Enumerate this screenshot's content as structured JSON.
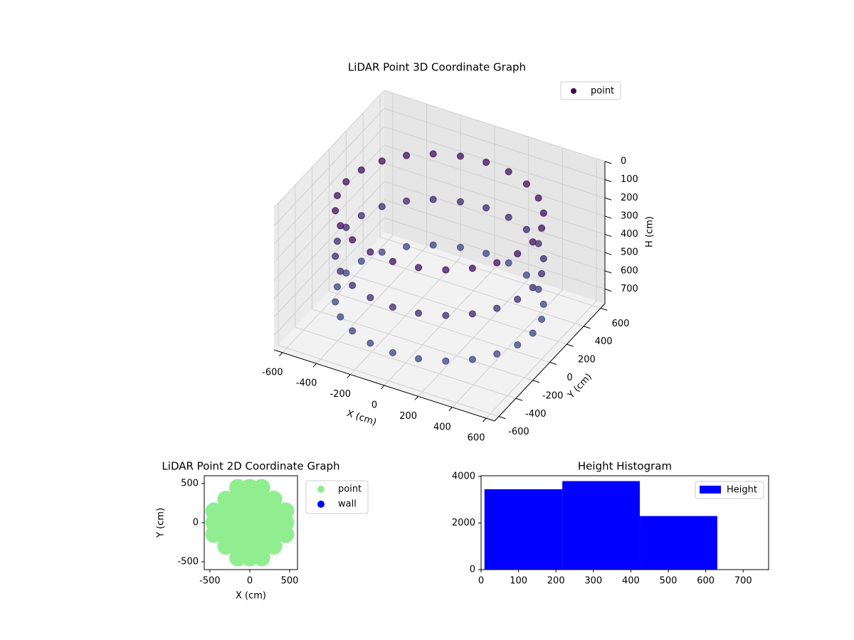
{
  "chart_data": [
    {
      "type": "scatter3d",
      "title": "LiDAR Point 3D Coordinate Graph",
      "xlabel": "X (cm)",
      "ylabel": "Y (cm)",
      "zlabel": "H (cm)",
      "xlim": [
        -650,
        650
      ],
      "ylim": [
        -650,
        650
      ],
      "zlim": [
        780,
        0
      ],
      "xticks": [
        -600,
        -400,
        -200,
        0,
        200,
        400,
        600
      ],
      "yticks": [
        -600,
        -400,
        -200,
        0,
        200,
        400,
        600
      ],
      "zticks": [
        0,
        100,
        200,
        300,
        400,
        500,
        600,
        700
      ],
      "grid": true,
      "legend": "upper right",
      "series": [
        {
          "name": "point",
          "color": "#440154",
          "x": [
            550,
            550,
            550,
            531,
            531,
            531,
            476,
            476,
            476,
            389,
            389,
            389,
            275,
            275,
            275,
            142,
            142,
            142,
            0,
            0,
            0,
            -142,
            -142,
            -142,
            -275,
            -275,
            -275,
            -389,
            -389,
            -389,
            -476,
            -476,
            -476,
            -531,
            -531,
            -531,
            -550,
            -550,
            -550,
            -531,
            -531,
            -531,
            -476,
            -476,
            -476,
            -389,
            -389,
            -389,
            -275,
            -275,
            -275,
            -142,
            -142,
            -142,
            0,
            0,
            0,
            142,
            142,
            142,
            275,
            275,
            275,
            389,
            389,
            389,
            476,
            476,
            476,
            531,
            531,
            531
          ],
          "y": [
            0,
            0,
            0,
            142,
            142,
            142,
            275,
            275,
            275,
            389,
            389,
            389,
            476,
            476,
            476,
            531,
            531,
            531,
            550,
            550,
            550,
            531,
            531,
            531,
            476,
            476,
            476,
            389,
            389,
            389,
            275,
            275,
            275,
            142,
            142,
            142,
            0,
            0,
            0,
            -142,
            -142,
            -142,
            -275,
            -275,
            -275,
            -389,
            -389,
            -389,
            -476,
            -476,
            -476,
            -531,
            -531,
            -531,
            -550,
            -550,
            -550,
            -531,
            -531,
            -531,
            -476,
            -476,
            -476,
            -389,
            -389,
            -389,
            -275,
            -275,
            -275,
            -142,
            -142,
            -142
          ],
          "z": [
            650,
            400,
            150,
            650,
            400,
            150,
            650,
            400,
            150,
            650,
            400,
            150,
            650,
            400,
            150,
            650,
            400,
            150,
            650,
            400,
            150,
            650,
            400,
            150,
            650,
            400,
            150,
            650,
            400,
            150,
            650,
            400,
            150,
            650,
            400,
            150,
            650,
            400,
            150,
            650,
            400,
            150,
            650,
            400,
            150,
            650,
            400,
            150,
            650,
            400,
            150,
            650,
            400,
            150,
            650,
            400,
            150,
            650,
            400,
            150,
            650,
            400,
            150,
            650,
            400,
            150,
            650,
            400,
            150,
            650,
            400,
            150
          ]
        }
      ]
    },
    {
      "type": "scatter",
      "title": "LiDAR Point 2D Coordinate Graph",
      "xlabel": "X (cm)",
      "ylabel": "Y (cm)",
      "xlim": [
        -571,
        598
      ],
      "ylim": [
        -600,
        600
      ],
      "xticks": [
        -500,
        0,
        500
      ],
      "yticks": [
        -500,
        0,
        500
      ],
      "legend": "outside right",
      "series": [
        {
          "name": "point",
          "color": "#90ee90",
          "x": [
            -450,
            -450,
            -450,
            -300,
            -300,
            -300,
            -300,
            -300,
            -150,
            -150,
            -150,
            -150,
            -150,
            -150,
            -150,
            0,
            0,
            0,
            0,
            0,
            0,
            0,
            150,
            150,
            150,
            150,
            150,
            150,
            150,
            300,
            300,
            300,
            300,
            300,
            450,
            450,
            450
          ],
          "y": [
            -150,
            0,
            150,
            -300,
            -150,
            0,
            150,
            300,
            -450,
            -300,
            -150,
            0,
            150,
            300,
            450,
            -450,
            -300,
            -150,
            0,
            150,
            300,
            450,
            -450,
            -300,
            -150,
            0,
            150,
            300,
            450,
            -300,
            -150,
            0,
            150,
            300,
            -150,
            0,
            150
          ]
        },
        {
          "name": "wall",
          "color": "#0000ff",
          "x": [],
          "y": []
        }
      ]
    },
    {
      "type": "histogram",
      "title": "Height Histogram",
      "name": "Height",
      "color": "#0000ff",
      "bins": [
        9,
        217,
        424,
        631
      ],
      "values": [
        3450,
        3800,
        2300
      ],
      "xlim": [
        0,
        768
      ],
      "ylim": [
        0,
        4030
      ],
      "xticks": [
        0,
        100,
        200,
        300,
        400,
        500,
        600,
        700
      ],
      "yticks": [
        0,
        2000,
        4000
      ],
      "legend": "upper right"
    }
  ]
}
